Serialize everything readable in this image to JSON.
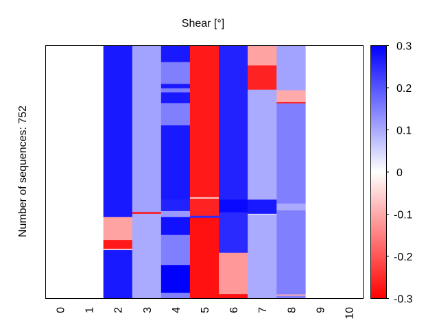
{
  "chart_data": {
    "type": "heatmap",
    "title": "Shear [°]",
    "xlabel": "",
    "ylabel": "Number of sequences: 752",
    "n_rows": 752,
    "x_categories": [
      "0",
      "1",
      "2",
      "3",
      "4",
      "5",
      "6",
      "7",
      "8",
      "9",
      "10"
    ],
    "colorbar": {
      "vmin": -0.3,
      "vmax": 0.3,
      "ticks": [
        0.3,
        0.2,
        0.1,
        0,
        -0.1,
        -0.2,
        -0.3
      ],
      "tick_labels": [
        "0.3",
        "0.2",
        "0.1",
        "0",
        "-0.1",
        "-0.2",
        "-0.3"
      ],
      "colormap": "bwr_reversed",
      "low_color": "#ff0000",
      "mid_color": "#ffffff",
      "high_color": "#0000ff"
    },
    "columns": [
      {
        "x": "2",
        "segments": [
          {
            "rows": [
              0,
              510
            ],
            "value": 0.27
          },
          {
            "rows": [
              510,
              578
            ],
            "value": -0.11
          },
          {
            "rows": [
              578,
              604
            ],
            "value": -0.27
          },
          {
            "rows": [
              604,
              608
            ],
            "value": -0.05
          },
          {
            "rows": [
              608,
              752
            ],
            "value": 0.27
          }
        ]
      },
      {
        "x": "3",
        "segments": [
          {
            "rows": [
              0,
              495
            ],
            "value": 0.11
          },
          {
            "rows": [
              495,
              500
            ],
            "value": -0.28
          },
          {
            "rows": [
              500,
              752
            ],
            "value": 0.1
          }
        ]
      },
      {
        "x": "4",
        "segments": [
          {
            "rows": [
              0,
              49
            ],
            "value": 0.27
          },
          {
            "rows": [
              49,
              114
            ],
            "value": 0.15
          },
          {
            "rows": [
              114,
              127
            ],
            "value": 0.27
          },
          {
            "rows": [
              127,
              139
            ],
            "value": 0.15
          },
          {
            "rows": [
              139,
              171
            ],
            "value": 0.27
          },
          {
            "rows": [
              171,
              237
            ],
            "value": 0.15
          },
          {
            "rows": [
              237,
              458
            ],
            "value": 0.27
          },
          {
            "rows": [
              458,
              492
            ],
            "value": 0.26
          },
          {
            "rows": [
              492,
              510
            ],
            "value": 0.12
          },
          {
            "rows": [
              510,
              563
            ],
            "value": 0.28
          },
          {
            "rows": [
              563,
              653
            ],
            "value": 0.15
          },
          {
            "rows": [
              653,
              735
            ],
            "value": 0.3
          },
          {
            "rows": [
              735,
              752
            ],
            "value": 0.15
          }
        ]
      },
      {
        "x": "5",
        "segments": [
          {
            "rows": [
              0,
              451
            ],
            "value": -0.27
          },
          {
            "rows": [
              451,
              455
            ],
            "value": -0.05
          },
          {
            "rows": [
              455,
              506
            ],
            "value": -0.26
          },
          {
            "rows": [
              506,
              512
            ],
            "value": 0.25
          },
          {
            "rows": [
              512,
              752
            ],
            "value": -0.28
          }
        ]
      },
      {
        "x": "6",
        "segments": [
          {
            "rows": [
              0,
              458
            ],
            "value": 0.26
          },
          {
            "rows": [
              458,
              496
            ],
            "value": 0.29
          },
          {
            "rows": [
              496,
              616
            ],
            "value": 0.25
          },
          {
            "rows": [
              616,
              739
            ],
            "value": -0.12
          },
          {
            "rows": [
              739,
              752
            ],
            "value": -0.28
          }
        ]
      },
      {
        "x": "7",
        "segments": [
          {
            "rows": [
              0,
              59
            ],
            "value": -0.11
          },
          {
            "rows": [
              59,
              131
            ],
            "value": -0.26
          },
          {
            "rows": [
              131,
              458
            ],
            "value": 0.1
          },
          {
            "rows": [
              458,
              500
            ],
            "value": 0.27
          },
          {
            "rows": [
              500,
              504
            ],
            "value": 0.05
          },
          {
            "rows": [
              504,
              752
            ],
            "value": 0.1
          }
        ]
      },
      {
        "x": "8",
        "segments": [
          {
            "rows": [
              0,
              133
            ],
            "value": 0.11
          },
          {
            "rows": [
              133,
              168
            ],
            "value": -0.1
          },
          {
            "rows": [
              168,
              172
            ],
            "value": -0.25
          },
          {
            "rows": [
              172,
              470
            ],
            "value": 0.15
          },
          {
            "rows": [
              470,
              490
            ],
            "value": 0.1
          },
          {
            "rows": [
              490,
              740
            ],
            "value": 0.15
          },
          {
            "rows": [
              740,
              744
            ],
            "value": -0.1
          },
          {
            "rows": [
              744,
              752
            ],
            "value": 0.15
          }
        ]
      }
    ]
  }
}
